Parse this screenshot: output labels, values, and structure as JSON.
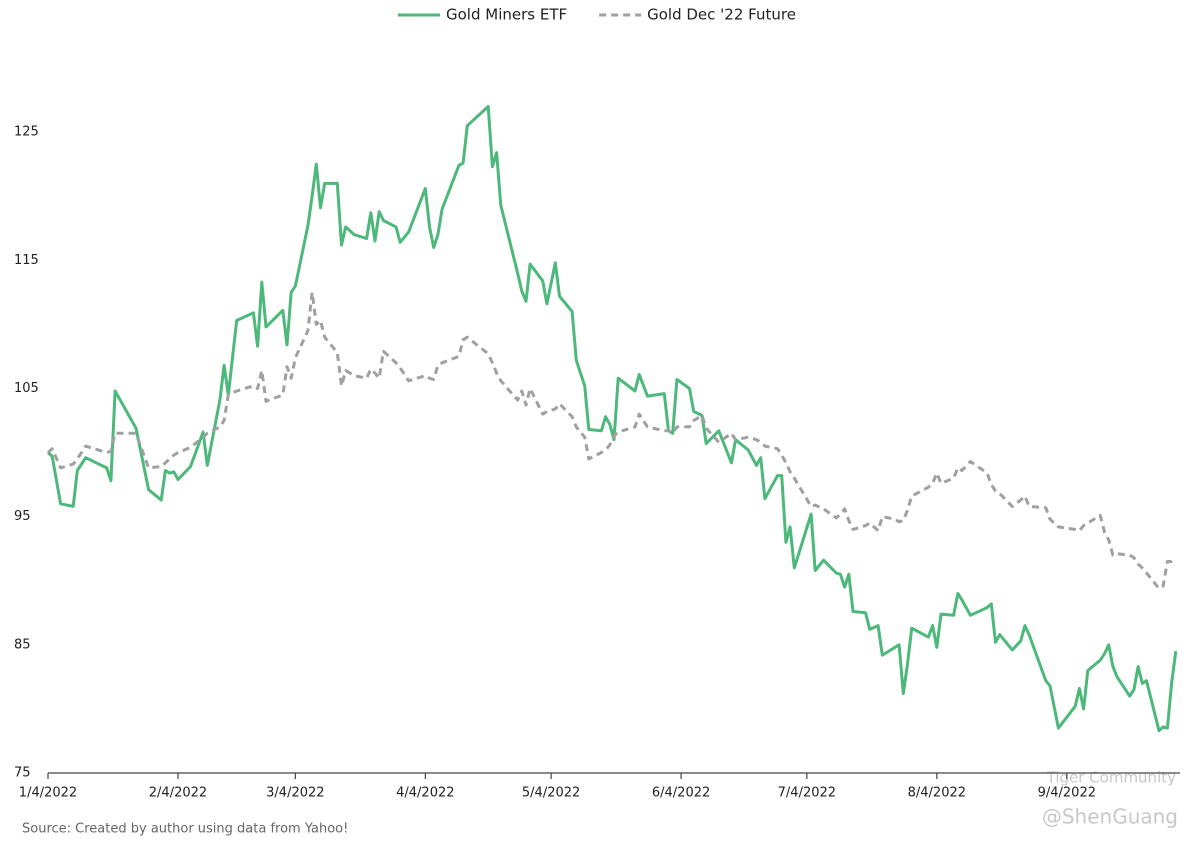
{
  "chart_data": {
    "type": "line",
    "source": "Source: Created by author using data from Yahoo!",
    "watermarks": [
      "Tiger Community",
      "@ShenGuang"
    ],
    "x": [
      "2022-01-04",
      "2022-01-05",
      "2022-01-07",
      "2022-01-10",
      "2022-01-11",
      "2022-01-13",
      "2022-01-18",
      "2022-01-19",
      "2022-01-20",
      "2022-01-25",
      "2022-01-28",
      "2022-01-31",
      "2022-02-01",
      "2022-02-02",
      "2022-02-03",
      "2022-02-04",
      "2022-02-07",
      "2022-02-10",
      "2022-02-11",
      "2022-02-14",
      "2022-02-15",
      "2022-02-16",
      "2022-02-18",
      "2022-02-22",
      "2022-02-23",
      "2022-02-24",
      "2022-02-25",
      "2022-03-01",
      "2022-03-02",
      "2022-03-03",
      "2022-03-04",
      "2022-03-07",
      "2022-03-08",
      "2022-03-09",
      "2022-03-10",
      "2022-03-11",
      "2022-03-14",
      "2022-03-15",
      "2022-03-16",
      "2022-03-18",
      "2022-03-21",
      "2022-03-22",
      "2022-03-23",
      "2022-03-24",
      "2022-03-25",
      "2022-03-28",
      "2022-03-29",
      "2022-03-31",
      "2022-04-04",
      "2022-04-05",
      "2022-04-06",
      "2022-04-07",
      "2022-04-08",
      "2022-04-12",
      "2022-04-13",
      "2022-04-14",
      "2022-04-19",
      "2022-04-20",
      "2022-04-21",
      "2022-04-22",
      "2022-04-26",
      "2022-04-27",
      "2022-04-28",
      "2022-04-29",
      "2022-05-02",
      "2022-05-03",
      "2022-05-05",
      "2022-05-06",
      "2022-05-09",
      "2022-05-10",
      "2022-05-12",
      "2022-05-13",
      "2022-05-16",
      "2022-05-17",
      "2022-05-18",
      "2022-05-19",
      "2022-05-20",
      "2022-05-24",
      "2022-05-25",
      "2022-05-27",
      "2022-05-31",
      "2022-06-01",
      "2022-06-02",
      "2022-06-03",
      "2022-06-06",
      "2022-06-07",
      "2022-06-09",
      "2022-06-10",
      "2022-06-13",
      "2022-06-16",
      "2022-06-17",
      "2022-06-20",
      "2022-06-22",
      "2022-06-23",
      "2022-06-24",
      "2022-06-27",
      "2022-06-28",
      "2022-06-29",
      "2022-06-30",
      "2022-07-01",
      "2022-07-05",
      "2022-07-06",
      "2022-07-08",
      "2022-07-11",
      "2022-07-12",
      "2022-07-13",
      "2022-07-14",
      "2022-07-15",
      "2022-07-18",
      "2022-07-19",
      "2022-07-21",
      "2022-07-22",
      "2022-07-25",
      "2022-07-26",
      "2022-07-27",
      "2022-07-28",
      "2022-07-29",
      "2022-08-02",
      "2022-08-03",
      "2022-08-04",
      "2022-08-05",
      "2022-08-08",
      "2022-08-09",
      "2022-08-10",
      "2022-08-12",
      "2022-08-16",
      "2022-08-17",
      "2022-08-18",
      "2022-08-19",
      "2022-08-22",
      "2022-08-24",
      "2022-08-25",
      "2022-08-26",
      "2022-08-30",
      "2022-08-31",
      "2022-09-02",
      "2022-09-06",
      "2022-09-07",
      "2022-09-08",
      "2022-09-09",
      "2022-09-12",
      "2022-09-13",
      "2022-09-14",
      "2022-09-15",
      "2022-09-16",
      "2022-09-19",
      "2022-09-20",
      "2022-09-21",
      "2022-09-22",
      "2022-09-23",
      "2022-09-26",
      "2022-09-27",
      "2022-09-28",
      "2022-09-29",
      "2022-09-30"
    ],
    "series": [
      {
        "name": "Gold Miners ETF",
        "color": "#4cb87a",
        "dashed": false,
        "values": [
          100,
          99.7,
          96.0,
          95.8,
          98.6,
          99.6,
          98.8,
          97.8,
          104.8,
          101.9,
          97.1,
          96.3,
          98.6,
          98.4,
          98.5,
          97.9,
          98.9,
          101.6,
          99.0,
          104.1,
          106.8,
          104.5,
          110.3,
          110.9,
          108.3,
          113.3,
          109.8,
          111.1,
          108.4,
          112.5,
          113.0,
          117.7,
          120.0,
          122.5,
          119.1,
          121.0,
          121.0,
          116.2,
          117.6,
          117.0,
          116.7,
          118.7,
          116.5,
          118.8,
          118.1,
          117.6,
          116.4,
          117.2,
          120.6,
          117.6,
          116.0,
          117.0,
          119.0,
          122.4,
          122.6,
          125.5,
          127.0,
          122.3,
          123.4,
          119.3,
          114.0,
          112.6,
          111.8,
          114.7,
          113.4,
          111.6,
          114.8,
          112.2,
          111.0,
          107.2,
          105.2,
          101.8,
          101.7,
          102.8,
          102.2,
          101.0,
          105.8,
          104.8,
          106.1,
          104.4,
          104.6,
          101.7,
          101.5,
          105.7,
          105.0,
          103.2,
          102.9,
          100.7,
          101.7,
          99.2,
          101.0,
          100.2,
          99.0,
          99.6,
          96.4,
          98.2,
          98.2,
          93.0,
          94.2,
          91.0,
          95.2,
          90.8,
          91.6,
          90.6,
          90.5,
          89.5,
          90.5,
          87.6,
          87.5,
          86.2,
          86.5,
          84.2,
          84.8,
          85.0,
          81.2,
          83.5,
          86.3,
          85.6,
          86.5,
          84.8,
          87.4,
          87.3,
          89.0,
          88.5,
          87.3,
          87.9,
          88.2,
          85.2,
          85.8,
          84.6,
          85.3,
          86.5,
          85.8,
          82.2,
          81.8,
          78.5,
          80.2,
          81.6,
          80.0,
          83.0,
          83.8,
          84.3,
          85.0,
          83.3,
          82.5,
          81.0,
          81.5,
          83.3,
          82.0,
          82.2,
          78.3,
          78.6,
          78.5,
          82.0,
          84.5
        ]
      },
      {
        "name": "Gold Dec '22 Future",
        "color": "#a0a0a0",
        "dashed": true,
        "values": [
          100,
          100.3,
          98.8,
          99.1,
          99.5,
          100.5,
          100.0,
          100.1,
          101.5,
          101.5,
          98.8,
          98.9,
          99.2,
          99.5,
          99.8,
          100.0,
          100.4,
          101.2,
          101.5,
          102.0,
          102.5,
          104.5,
          104.8,
          105.2,
          105.0,
          106.4,
          104.0,
          104.5,
          106.7,
          105.8,
          107.4,
          109.5,
          112.5,
          110.0,
          110.3,
          109.0,
          107.8,
          105.2,
          106.4,
          106.0,
          105.8,
          106.5,
          106.2,
          105.8,
          107.9,
          107.0,
          106.6,
          105.6,
          106.0,
          105.8,
          105.7,
          106.8,
          107.0,
          107.5,
          108.8,
          109.0,
          107.7,
          107.0,
          106.2,
          105.6,
          104.1,
          104.8,
          103.7,
          105.0,
          103.0,
          103.2,
          103.4,
          103.8,
          102.8,
          102.0,
          101.2,
          99.5,
          100.0,
          100.2,
          100.6,
          101.3,
          101.6,
          102.0,
          103.0,
          102.0,
          101.7,
          101.7,
          101.5,
          102.0,
          102.0,
          102.5,
          102.9,
          101.9,
          100.8,
          101.5,
          101.0,
          101.2,
          101.0,
          100.8,
          100.5,
          100.3,
          99.8,
          99.2,
          98.5,
          98.0,
          95.8,
          95.9,
          95.6,
          94.9,
          95.2,
          95.6,
          94.7,
          94.0,
          94.3,
          94.5,
          93.9,
          95.0,
          94.8,
          94.6,
          94.7,
          95.5,
          96.6,
          97.3,
          97.6,
          98.4,
          97.6,
          98.0,
          98.8,
          98.6,
          99.3,
          98.4,
          97.5,
          97.0,
          96.8,
          95.8,
          96.3,
          96.6,
          95.8,
          95.7,
          94.8,
          94.2,
          94.0,
          93.9,
          94.3,
          94.5,
          95.1,
          93.8,
          93.2,
          92.0,
          92.1,
          92.0,
          91.8,
          91.3,
          91.0,
          90.6,
          89.4,
          89.6,
          91.5,
          91.5,
          91.8
        ]
      }
    ],
    "xlim": [
      "2022-01-04",
      "2022-10-01"
    ],
    "xticks": [
      {
        "value": "2022-01-04",
        "label": "1/4/2022"
      },
      {
        "value": "2022-02-04",
        "label": "2/4/2022"
      },
      {
        "value": "2022-03-04",
        "label": "3/4/2022"
      },
      {
        "value": "2022-04-04",
        "label": "4/4/2022"
      },
      {
        "value": "2022-05-04",
        "label": "5/4/2022"
      },
      {
        "value": "2022-06-04",
        "label": "6/4/2022"
      },
      {
        "value": "2022-07-04",
        "label": "7/4/2022"
      },
      {
        "value": "2022-08-04",
        "label": "8/4/2022"
      },
      {
        "value": "2022-09-04",
        "label": "9/4/2022"
      }
    ],
    "ylim": [
      75,
      130
    ],
    "yticks": [
      75,
      85,
      95,
      105,
      115,
      125
    ],
    "grid": false,
    "legend": "top"
  }
}
